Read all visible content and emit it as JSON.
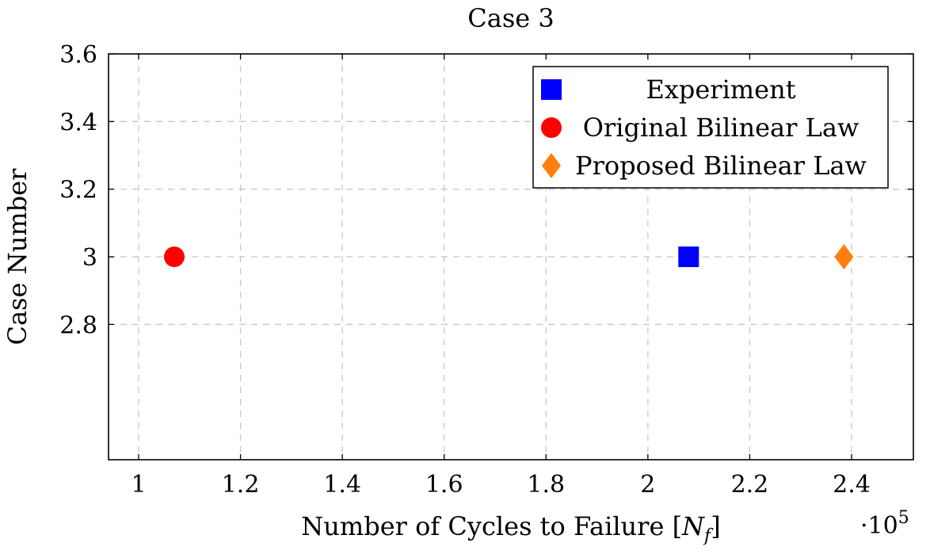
{
  "chart_data": {
    "type": "scatter",
    "title": "Case 3",
    "xlabel": "Number of Cycles to Failure [N_f]",
    "xlabel_main": "Number of Cycles to Failure [",
    "xlabel_sym": "N",
    "xlabel_sub": "f",
    "xlabel_end": "]",
    "ylabel": "Case Number",
    "x_multiplier": "·10",
    "x_multiplier_exp": "5",
    "xlim": [
      0.94,
      2.52
    ],
    "ylim": [
      2.4,
      3.6
    ],
    "x_ticks": [
      "1",
      "1.2",
      "1.4",
      "1.6",
      "1.8",
      "2",
      "2.2",
      "2.4"
    ],
    "x_tick_values": [
      1.0,
      1.2,
      1.4,
      1.6,
      1.8,
      2.0,
      2.2,
      2.4
    ],
    "y_ticks": [
      "2.8",
      "3",
      "3.2",
      "3.4",
      "3.6"
    ],
    "y_tick_values": [
      2.8,
      3.0,
      3.2,
      3.4,
      3.6
    ],
    "grid": true,
    "legend_position": "top-right",
    "series": [
      {
        "name": "Experiment",
        "marker": "square",
        "color": "#0000ff",
        "x": [
          2.08
        ],
        "y": [
          3.0
        ]
      },
      {
        "name": "Original Bilinear Law",
        "marker": "circle",
        "color": "#ff0000",
        "x": [
          1.07
        ],
        "y": [
          3.0
        ]
      },
      {
        "name": "Proposed Bilinear Law",
        "marker": "diamond",
        "color": "#ff7f0e",
        "x": [
          2.385
        ],
        "y": [
          3.0
        ]
      }
    ]
  }
}
